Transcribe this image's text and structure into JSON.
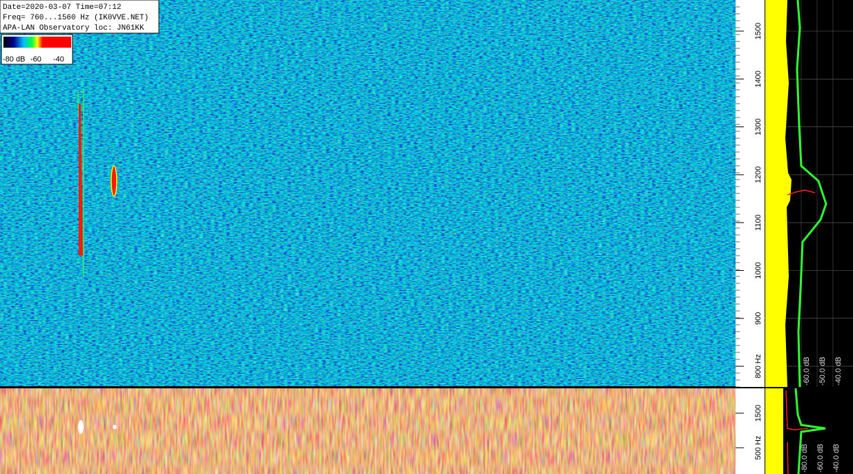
{
  "info": {
    "date_line": "Date=2020-03-07 Time=07:12",
    "freq_line": "Freq= 760...1560 Hz (IK0VVE.NET)",
    "location_line": "APA-LAN Observatory loc: JN61KK"
  },
  "color_scale": {
    "labels": [
      "-80 dB",
      "-60",
      "-40"
    ]
  },
  "top_panel": {
    "freq_ticks": [
      "1500",
      "1400",
      "1300",
      "1200",
      "1100",
      "1000",
      "900",
      "800 Hz"
    ],
    "level_labels": [
      "-60.0 dB",
      "-50.0 dB",
      "-40.0 dB"
    ]
  },
  "bottom_panel": {
    "freq_ticks": [
      "1500",
      "500 Hz"
    ],
    "level_labels": [
      "-80.0 dB",
      "-60.0 dB",
      "-40.0 dB"
    ]
  }
}
